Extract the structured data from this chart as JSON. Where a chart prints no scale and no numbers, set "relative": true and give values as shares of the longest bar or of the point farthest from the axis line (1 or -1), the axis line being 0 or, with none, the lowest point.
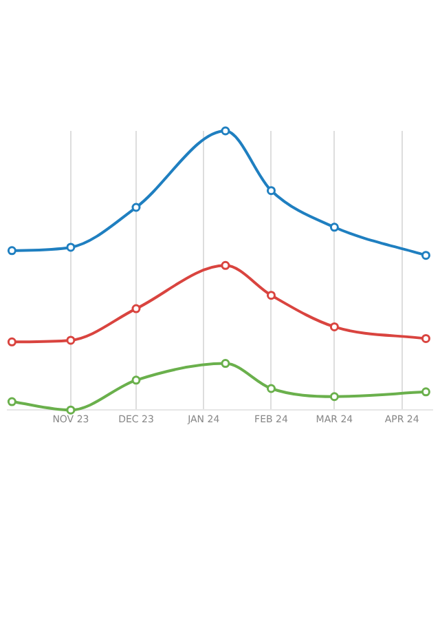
{
  "chart_data": {
    "type": "line",
    "relative": true,
    "grid": "x",
    "marker": "circle",
    "line_style": "solid",
    "legend": false,
    "x": [
      "2023-10-05",
      "2023-11-01",
      "2023-12-01",
      "2024-01-11",
      "2024-02-01",
      "2024-03-01",
      "2024-04-12"
    ],
    "xlim": [
      "2023-10-03",
      "2024-04-15"
    ],
    "xticks": [
      {
        "value": "2023-11-01",
        "label": "NOV 23"
      },
      {
        "value": "2023-12-01",
        "label": "DEC 23"
      },
      {
        "value": "2024-01-01",
        "label": "JAN 24"
      },
      {
        "value": "2024-02-01",
        "label": "FEB 24"
      },
      {
        "value": "2024-03-01",
        "label": "MAR 24"
      },
      {
        "value": "2024-04-01",
        "label": "APR 24"
      }
    ],
    "series": [
      {
        "color": "#1f7fc0",
        "values": [
          0.571,
          0.583,
          0.726,
          1,
          0.786,
          0.655,
          0.554
        ]
      },
      {
        "color": "#d9443f",
        "values": [
          0.244,
          0.25,
          0.363,
          0.518,
          0.411,
          0.298,
          0.256
        ]
      },
      {
        "color": "#6ab04c",
        "values": [
          0.03,
          0,
          0.107,
          0.167,
          0.077,
          0.048,
          0.065
        ]
      }
    ]
  }
}
